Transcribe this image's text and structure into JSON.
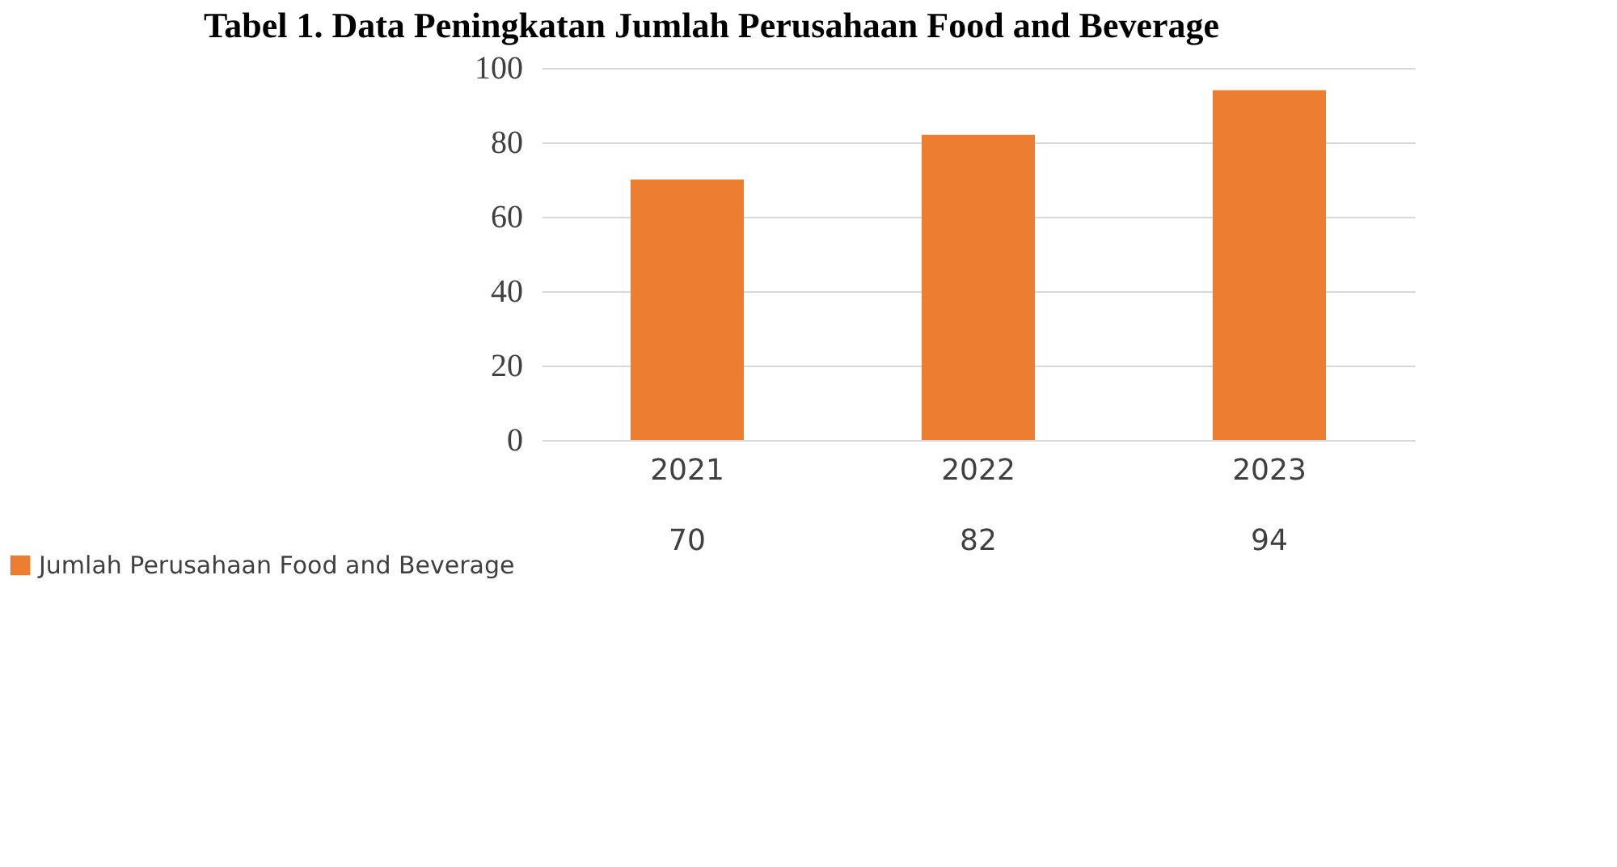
{
  "chart_data": {
    "type": "bar",
    "title": "Tabel 1. Data Peningkatan Jumlah Perusahaan Food and Beverage",
    "categories": [
      "2021",
      "2022",
      "2023"
    ],
    "series": [
      {
        "name": "Jumlah Perusahaan Food and Beverage",
        "color": "#ed7d31",
        "values": [
          70,
          82,
          94
        ]
      }
    ],
    "ylim": [
      0,
      100
    ],
    "yticks": [
      0,
      20,
      40,
      60,
      80,
      100
    ],
    "grid": "y",
    "data_labels": true,
    "legend": "bottom left"
  }
}
